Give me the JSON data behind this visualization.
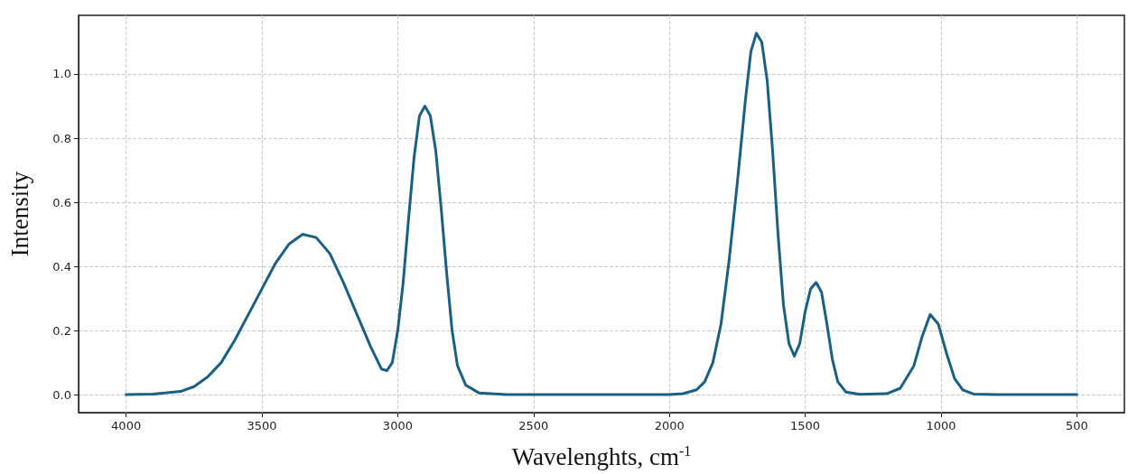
{
  "chart_data": {
    "type": "line",
    "xlabel": "Wavelenghts, cm$^{-1}$",
    "ylabel": "Intensity",
    "xlim": [
      4175,
      325
    ],
    "xticks": [
      4000,
      3500,
      3000,
      2500,
      2000,
      1500,
      1000,
      500
    ],
    "ylim": [
      -0.056,
      1.183
    ],
    "yticks": [
      {
        "value": 0,
        "label": "0.0"
      },
      {
        "value": 0.2,
        "label": "0.2"
      },
      {
        "value": 0.4,
        "label": "0.4"
      },
      {
        "value": 0.6,
        "label": "0.6"
      },
      {
        "value": 0.8,
        "label": "0.8"
      },
      {
        "value": 1,
        "label": "1.0"
      }
    ],
    "grid": true,
    "line_style": "solid",
    "marker": "none",
    "series": [
      {
        "color": "#1a6085",
        "x": [
          4000,
          3900,
          3800,
          3750,
          3700,
          3650,
          3600,
          3550,
          3500,
          3450,
          3400,
          3350,
          3300,
          3250,
          3200,
          3150,
          3100,
          3060,
          3040,
          3020,
          3000,
          2980,
          2960,
          2940,
          2920,
          2900,
          2880,
          2860,
          2840,
          2820,
          2800,
          2780,
          2750,
          2700,
          2600,
          2000,
          1950,
          1900,
          1870,
          1840,
          1810,
          1780,
          1750,
          1720,
          1700,
          1680,
          1660,
          1640,
          1620,
          1600,
          1580,
          1560,
          1540,
          1520,
          1500,
          1480,
          1460,
          1440,
          1420,
          1400,
          1380,
          1350,
          1300,
          1200,
          1150,
          1100,
          1070,
          1040,
          1010,
          980,
          950,
          920,
          880,
          800,
          500
        ],
        "values": [
          0,
          0.002,
          0.01,
          0.025,
          0.055,
          0.1,
          0.17,
          0.25,
          0.33,
          0.41,
          0.47,
          0.5,
          0.49,
          0.44,
          0.35,
          0.25,
          0.15,
          0.08,
          0.075,
          0.1,
          0.2,
          0.35,
          0.55,
          0.74,
          0.87,
          0.9,
          0.87,
          0.76,
          0.58,
          0.38,
          0.2,
          0.09,
          0.03,
          0.005,
          0,
          0,
          0.003,
          0.015,
          0.04,
          0.1,
          0.22,
          0.42,
          0.66,
          0.92,
          1.07,
          1.127,
          1.1,
          0.98,
          0.76,
          0.5,
          0.28,
          0.16,
          0.12,
          0.16,
          0.26,
          0.33,
          0.35,
          0.32,
          0.22,
          0.11,
          0.04,
          0.008,
          0.001,
          0.003,
          0.02,
          0.09,
          0.18,
          0.25,
          0.22,
          0.13,
          0.05,
          0.015,
          0.002,
          0,
          0
        ]
      }
    ]
  }
}
